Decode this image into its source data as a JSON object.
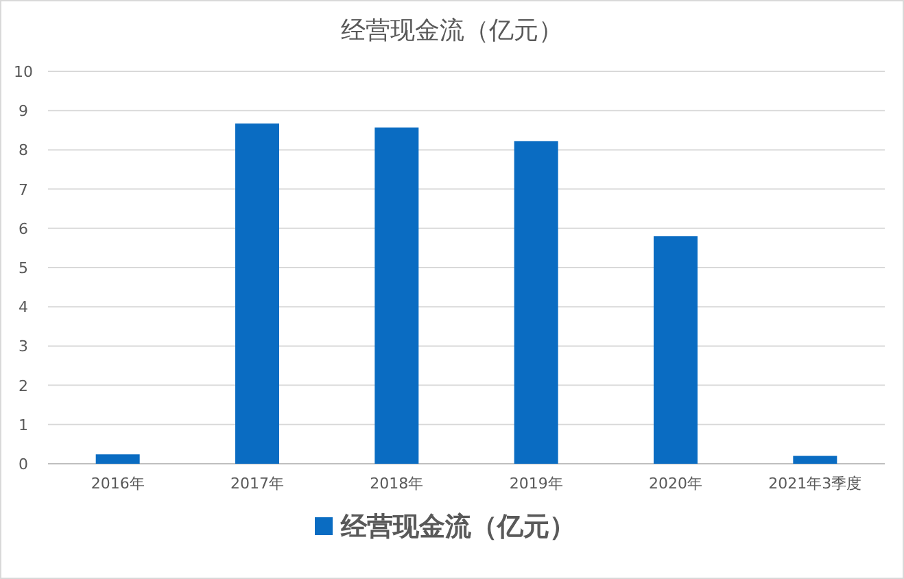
{
  "chart_data": {
    "type": "bar",
    "title": "经营现金流（亿元）",
    "categories": [
      "2016年",
      "2017年",
      "2018年",
      "2019年",
      "2020年",
      "2021年3季度"
    ],
    "series": [
      {
        "name": "经营现金流（亿元）",
        "color": "#0a6cc2",
        "values": [
          0.24,
          8.67,
          8.57,
          8.22,
          5.8,
          0.2
        ]
      }
    ],
    "ylim": [
      0,
      10
    ],
    "yticks": [
      0,
      1,
      2,
      3,
      4,
      5,
      6,
      7,
      8,
      9,
      10
    ],
    "grid": "y",
    "legend": "bottom"
  }
}
